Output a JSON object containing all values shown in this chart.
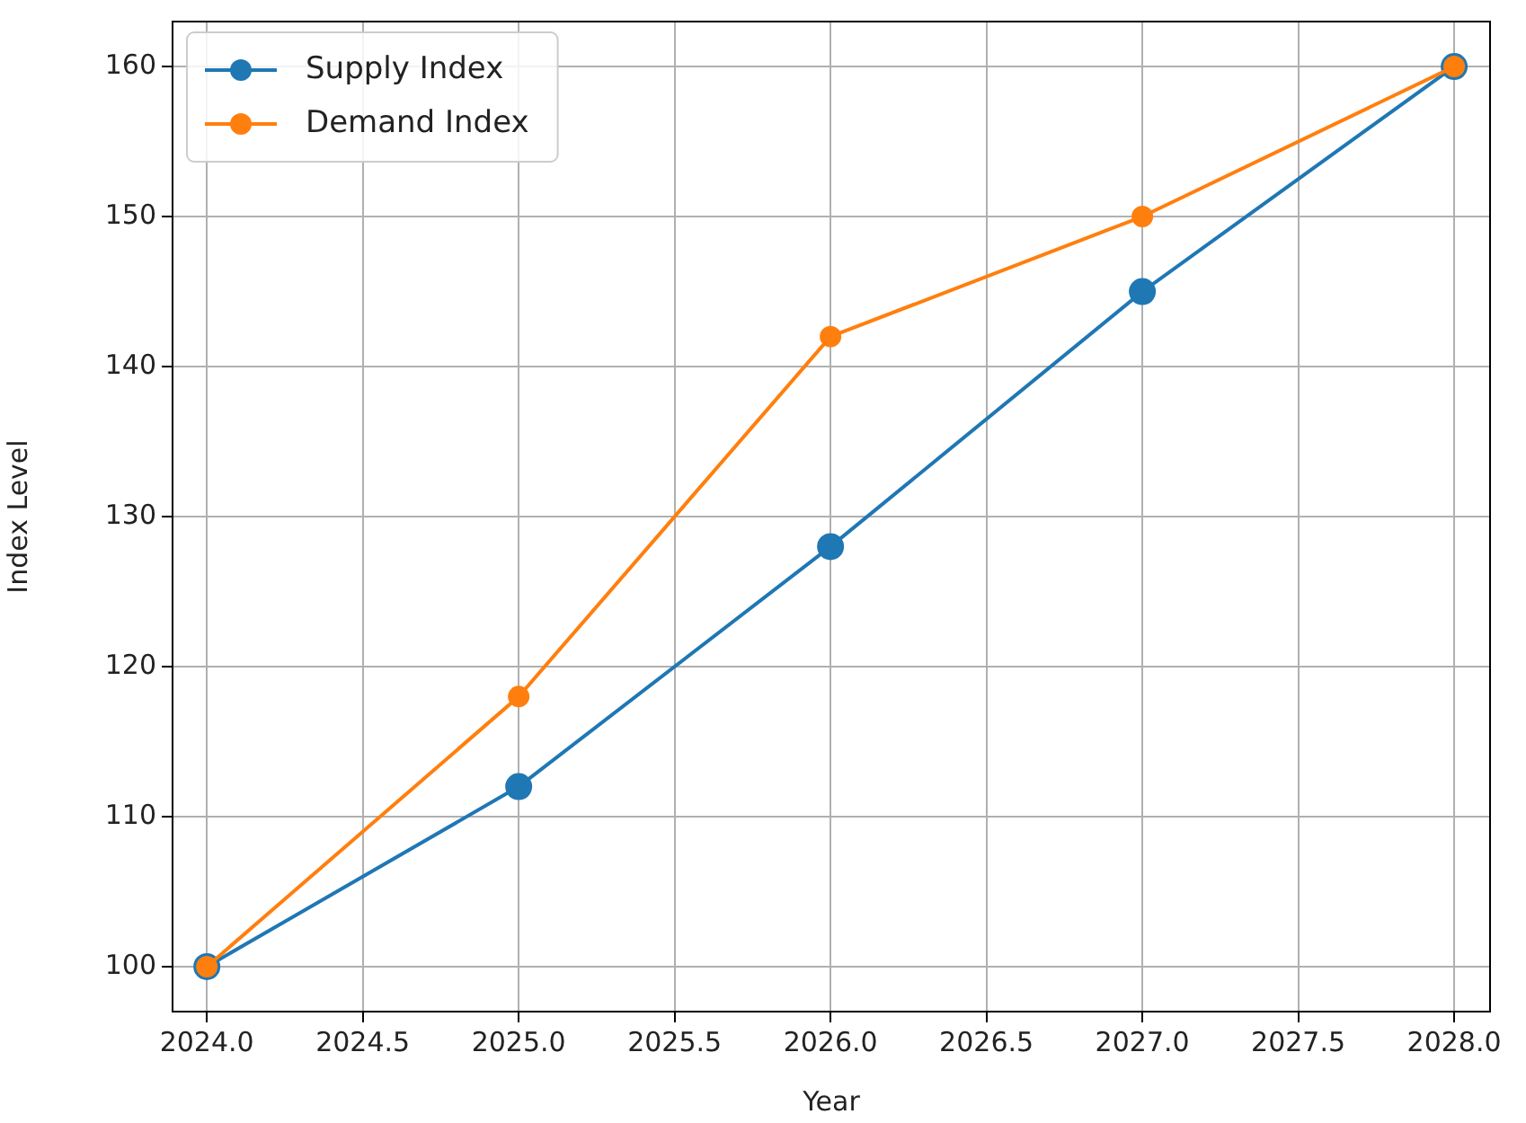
{
  "chart_data": {
    "type": "line",
    "xlabel": "Year",
    "ylabel": "Index Level",
    "x": [
      2024,
      2025,
      2026,
      2027,
      2028
    ],
    "series": [
      {
        "name": "Supply Index",
        "color": "#1f77b4",
        "values": [
          100,
          112,
          128,
          145,
          160
        ]
      },
      {
        "name": "Demand Index",
        "color": "#ff7f0e",
        "values": [
          100,
          118,
          142,
          150,
          160
        ]
      }
    ],
    "xlim": [
      2023.89,
      2028.115
    ],
    "ylim": [
      97,
      163
    ],
    "xticks": [
      {
        "value": 2024,
        "label": "2024.0"
      },
      {
        "value": 2024.5,
        "label": "2024.5"
      },
      {
        "value": 2025,
        "label": "2025.0"
      },
      {
        "value": 2025.5,
        "label": "2025.5"
      },
      {
        "value": 2026,
        "label": "2026.0"
      },
      {
        "value": 2026.5,
        "label": "2026.5"
      },
      {
        "value": 2027,
        "label": "2027.0"
      },
      {
        "value": 2027.5,
        "label": "2027.5"
      },
      {
        "value": 2028,
        "label": "2028.0"
      }
    ],
    "yticks": [
      100,
      110,
      120,
      130,
      140,
      150,
      160
    ],
    "grid": true,
    "legend": "top left",
    "marker": "circle",
    "line_style": "solid"
  }
}
